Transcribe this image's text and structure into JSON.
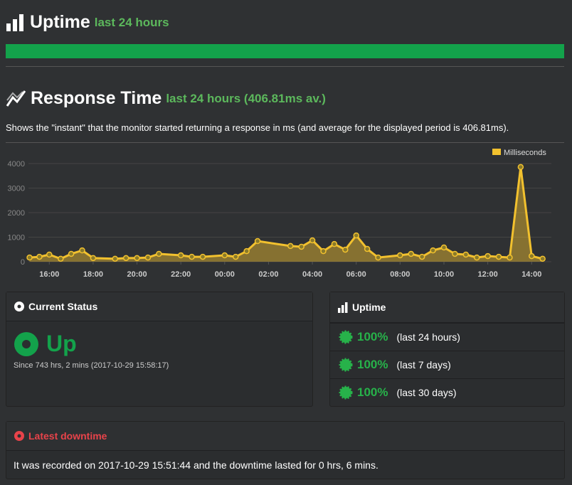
{
  "uptime": {
    "title": "Uptime",
    "subtitle": "last 24 hours"
  },
  "response_time": {
    "title": "Response Time",
    "subtitle": "last 24 hours (406.81ms av.)",
    "description": "Shows the \"instant\" that the monitor started returning a response in ms (and average for the displayed period is 406.81ms)."
  },
  "chart_data": {
    "type": "area",
    "x": [
      15.1,
      15.55,
      16,
      16.52,
      17,
      17.5,
      18,
      19,
      19.5,
      20,
      20.5,
      21,
      22,
      22.5,
      23,
      24,
      24.5,
      25,
      25.5,
      27,
      27.5,
      28,
      28.5,
      29,
      29.5,
      30,
      30.5,
      31,
      32,
      32.5,
      33,
      33.5,
      34,
      34.5,
      35,
      35.5,
      36,
      36.5,
      37,
      37.5,
      38,
      38.5
    ],
    "series": [
      {
        "name": "Milliseconds",
        "color": "#f2c12e",
        "values": [
          170,
          200,
          290,
          120,
          320,
          460,
          150,
          120,
          150,
          150,
          170,
          320,
          260,
          200,
          200,
          260,
          200,
          430,
          840,
          640,
          610,
          870,
          430,
          720,
          490,
          1070,
          520,
          170,
          260,
          320,
          200,
          460,
          580,
          320,
          290,
          170,
          230,
          200,
          170,
          3860,
          230,
          120
        ]
      }
    ],
    "xlim": [
      15.05,
      38.9
    ],
    "xticks": [
      {
        "value": 16,
        "label": "16:00"
      },
      {
        "value": 18,
        "label": "18:00"
      },
      {
        "value": 20,
        "label": "20:00"
      },
      {
        "value": 22,
        "label": "22:00"
      },
      {
        "value": 24,
        "label": "00:00"
      },
      {
        "value": 26,
        "label": "02:00"
      },
      {
        "value": 28,
        "label": "04:00"
      },
      {
        "value": 30,
        "label": "06:00"
      },
      {
        "value": 32,
        "label": "08:00"
      },
      {
        "value": 34,
        "label": "10:00"
      },
      {
        "value": 36,
        "label": "12:00"
      },
      {
        "value": 38,
        "label": "14:00"
      }
    ],
    "ylim": [
      0,
      4000
    ],
    "yticks": [
      0,
      1000,
      2000,
      3000,
      4000
    ],
    "grid": true,
    "legend": "top-right"
  },
  "current_status": {
    "title": "Current Status",
    "status": "Up",
    "since": "Since 743 hrs, 2 mins (2017-10-29 15:58:17)"
  },
  "uptime_panel": {
    "title": "Uptime",
    "rows": [
      {
        "value": "100%",
        "period": "(last 24 hours)"
      },
      {
        "value": "100%",
        "period": "(last 7 days)"
      },
      {
        "value": "100%",
        "period": "(last 30 days)"
      }
    ]
  },
  "latest_downtime": {
    "title": "Latest downtime",
    "text": "It was recorded on 2017-10-29 15:51:44 and the downtime lasted for 0 hrs, 6 mins."
  }
}
